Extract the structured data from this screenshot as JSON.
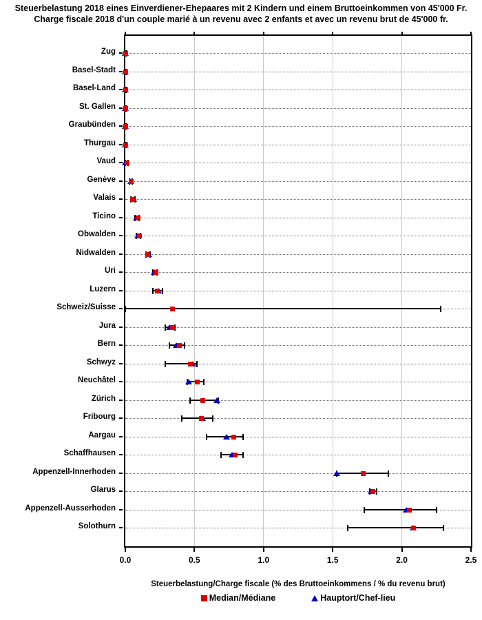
{
  "chart": {
    "title_line1": "Steuerbelastung 2018 eines Einverdiener-Ehepaares mit 2 Kindern und einem Bruttoeinkommen von 45'000 Fr.",
    "title_line2": "Charge fiscale 2018 d'un couple marié à un revenu avec 2 enfants et avec un revenu brut de 45'000 fr."
  },
  "legend": {
    "median_label": "Median/Médiane",
    "hauptort_label": "Hauptort/Chef-lieu"
  },
  "chart_data": {
    "type": "scatter",
    "subtype": "dot-plot-with-range-bars",
    "title": "Steuerbelastung 2018 eines Einverdiener-Ehepaares mit 2 Kindern und einem Bruttoeinkommen von 45'000 Fr. / Charge fiscale 2018 d'un couple marié à un revenu avec 2 enfants et avec un revenu brut de 45'000 fr.",
    "xlabel": "Steuerbelastung/Charge fiscale (% des Bruttoeinkommens / % du revenu brut)",
    "ylabel": "",
    "xlim": [
      0,
      2.5
    ],
    "x_ticks": [
      0.0,
      0.5,
      1.0,
      1.5,
      2.0,
      2.5
    ],
    "x_tick_labels": [
      "0.0",
      "0.5",
      "1.0",
      "1.5",
      "2.0",
      "2.5"
    ],
    "grid": "vertical-solid-gray-plus-horizontal-dotted-row-leaders",
    "legend_position": "bottom-center",
    "series_legend": [
      "Median/Médiane",
      "Hauptort/Chef-lieu"
    ],
    "colors": {
      "median": "#e00000",
      "hauptort": "#0000cc",
      "range": "#000000",
      "gridline": "#c9c9c9"
    },
    "rows": [
      {
        "canton": "Zug",
        "min": 0.0,
        "max": 0.01,
        "median": 0.0,
        "hauptort": 0.0
      },
      {
        "canton": "Basel-Stadt",
        "min": 0.0,
        "max": 0.01,
        "median": 0.0,
        "hauptort": 0.0
      },
      {
        "canton": "Basel-Land",
        "min": 0.0,
        "max": 0.01,
        "median": 0.0,
        "hauptort": 0.0
      },
      {
        "canton": "St. Gallen",
        "min": 0.0,
        "max": 0.01,
        "median": 0.0,
        "hauptort": 0.0
      },
      {
        "canton": "Graubünden",
        "min": 0.0,
        "max": 0.01,
        "median": 0.0,
        "hauptort": 0.0
      },
      {
        "canton": "Thurgau",
        "min": 0.0,
        "max": 0.01,
        "median": 0.0,
        "hauptort": 0.0
      },
      {
        "canton": "Vaud",
        "min": 0.0,
        "max": 0.02,
        "median": 0.01,
        "hauptort": 0.0
      },
      {
        "canton": "Genève",
        "min": 0.03,
        "max": 0.05,
        "median": 0.04,
        "hauptort": 0.04
      },
      {
        "canton": "Valais",
        "min": 0.04,
        "max": 0.07,
        "median": 0.05,
        "hauptort": 0.06
      },
      {
        "canton": "Ticino",
        "min": 0.07,
        "max": 0.1,
        "median": 0.09,
        "hauptort": 0.08
      },
      {
        "canton": "Obwalden",
        "min": 0.08,
        "max": 0.11,
        "median": 0.1,
        "hauptort": 0.09
      },
      {
        "canton": "Nidwalden",
        "min": 0.15,
        "max": 0.18,
        "median": 0.16,
        "hauptort": 0.17
      },
      {
        "canton": "Uri",
        "min": 0.2,
        "max": 0.23,
        "median": 0.22,
        "hauptort": 0.21
      },
      {
        "canton": "Luzern",
        "min": 0.2,
        "max": 0.27,
        "median": 0.23,
        "hauptort": 0.24
      },
      {
        "canton": "Schweiz/Suisse",
        "min": 0.0,
        "max": 2.28,
        "median": 0.34,
        "hauptort": null
      },
      {
        "canton": "Jura",
        "min": 0.29,
        "max": 0.36,
        "median": 0.34,
        "hauptort": 0.32
      },
      {
        "canton": "Bern",
        "min": 0.32,
        "max": 0.43,
        "median": 0.39,
        "hauptort": 0.37
      },
      {
        "canton": "Schwyz",
        "min": 0.29,
        "max": 0.52,
        "median": 0.47,
        "hauptort": 0.49
      },
      {
        "canton": "Neuchâtel",
        "min": 0.45,
        "max": 0.57,
        "median": 0.52,
        "hauptort": 0.46
      },
      {
        "canton": "Zürich",
        "min": 0.47,
        "max": 0.67,
        "median": 0.56,
        "hauptort": 0.66
      },
      {
        "canton": "Fribourg",
        "min": 0.41,
        "max": 0.63,
        "median": 0.55,
        "hauptort": 0.56
      },
      {
        "canton": "Aargau",
        "min": 0.59,
        "max": 0.85,
        "median": 0.78,
        "hauptort": 0.73
      },
      {
        "canton": "Schaffhausen",
        "min": 0.69,
        "max": 0.85,
        "median": 0.79,
        "hauptort": 0.77
      },
      {
        "canton": "Appenzell-Innerhoden",
        "min": 1.53,
        "max": 1.9,
        "median": 1.72,
        "hauptort": 1.53
      },
      {
        "canton": "Glarus",
        "min": 1.77,
        "max": 1.82,
        "median": 1.79,
        "hauptort": 1.78
      },
      {
        "canton": "Appenzell-Ausserhoden",
        "min": 1.73,
        "max": 2.25,
        "median": 2.05,
        "hauptort": 2.03
      },
      {
        "canton": "Solothurn",
        "min": 1.61,
        "max": 2.3,
        "median": 2.08,
        "hauptort": 2.08
      }
    ]
  }
}
